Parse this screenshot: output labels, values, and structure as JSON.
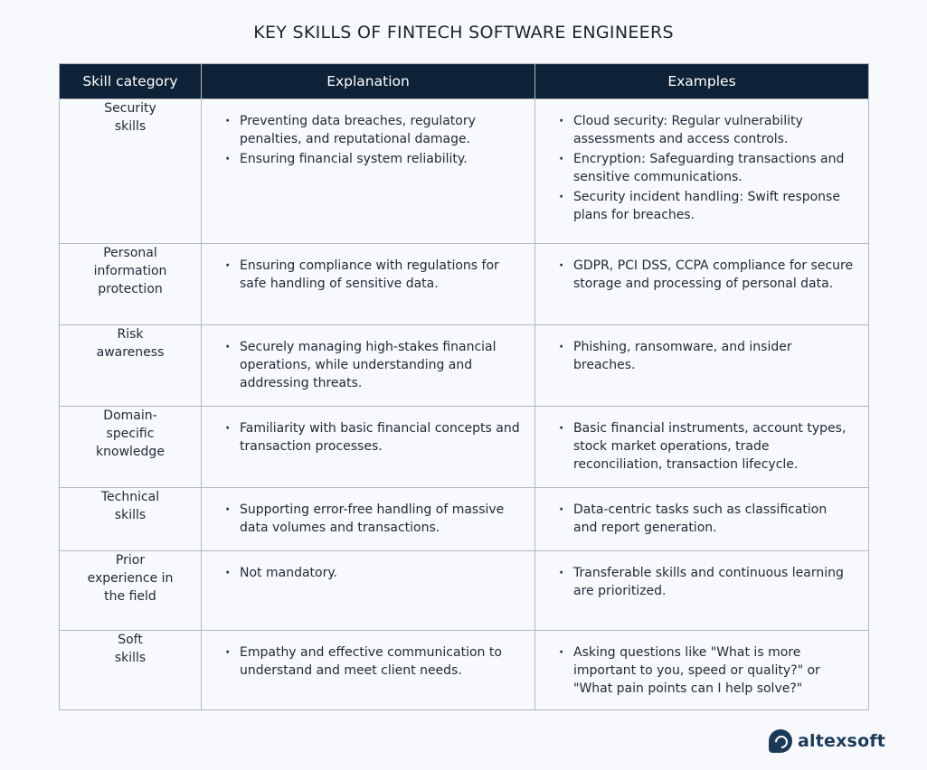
{
  "title": "KEY SKILLS OF FINTECH SOFTWARE ENGINEERS",
  "table": {
    "headers": {
      "category": "Skill category",
      "explanation": "Explanation",
      "examples": "Examples"
    },
    "rows": [
      {
        "category": "Security\nskills",
        "explanation": [
          "Preventing data breaches, regulatory penalties, and reputational damage.",
          "Ensuring financial system reliability."
        ],
        "examples": [
          "Cloud security: Regular vulnerability assessments and access controls.",
          "Encryption: Safeguarding transactions and sensitive communications.",
          "Security incident handling: Swift response plans for breaches."
        ]
      },
      {
        "category": "Personal\ninformation\nprotection",
        "explanation": [
          "Ensuring compliance with regulations for safe handling of sensitive data."
        ],
        "examples": [
          "GDPR, PCI DSS, CCPA compliance for secure storage and processing of personal data."
        ]
      },
      {
        "category": "Risk\nawareness",
        "explanation": [
          "Securely managing high-stakes financial operations, while understanding and addressing threats."
        ],
        "examples": [
          "Phishing, ransomware, and insider breaches."
        ]
      },
      {
        "category": "Domain-\nspecific\nknowledge",
        "explanation": [
          "Familiarity with basic financial concepts and transaction processes."
        ],
        "examples": [
          "Basic financial instruments, account types, stock market operations, trade reconciliation, transaction lifecycle."
        ]
      },
      {
        "category": "Technical\nskills",
        "explanation": [
          "Supporting error-free handling of massive data volumes and transactions."
        ],
        "examples": [
          "Data-centric tasks such as classification and report generation."
        ]
      },
      {
        "category": "Prior\nexperience in\nthe field",
        "explanation": [
          "Not mandatory."
        ],
        "examples": [
          "Transferable skills and continuous learning are prioritized."
        ]
      },
      {
        "category": "Soft\nskills",
        "explanation": [
          "Empathy and effective communication to understand and meet client needs."
        ],
        "examples": [
          "Asking questions like \"What is more important to you, speed or quality?\" or \"What pain points can I help solve?\""
        ]
      }
    ]
  },
  "logo": {
    "text": "altexsoft",
    "icon": "altexsoft-logo-icon",
    "color": "#1c3a57"
  },
  "colors": {
    "header_bg": "#0d2137",
    "header_text": "#ffffff",
    "border": "#b3b8bf",
    "background": "#f7f9fc"
  }
}
